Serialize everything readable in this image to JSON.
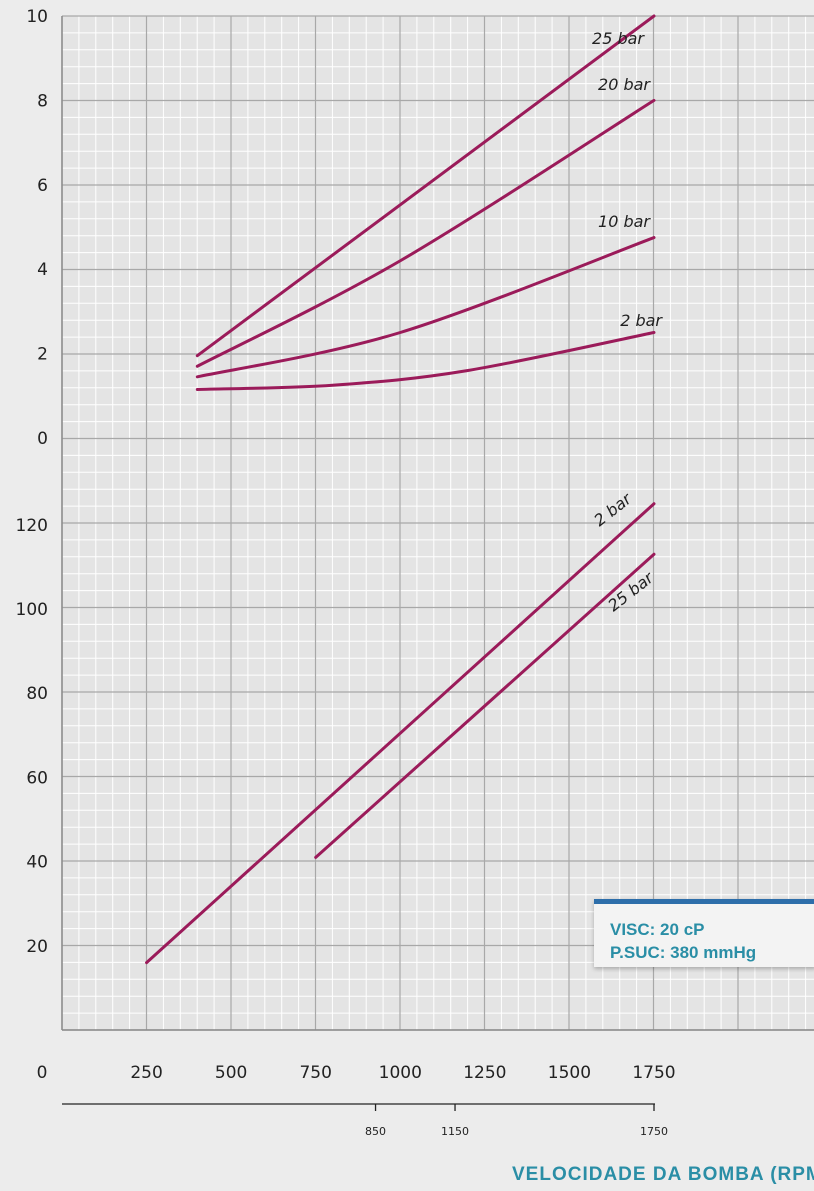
{
  "chart_data": [
    {
      "type": "line",
      "title": "",
      "xlabel": "VELOCIDADE DA BOMBA (RPM)",
      "ylabel": "",
      "xlim": [
        0,
        2000
      ],
      "ylim": [
        0,
        10
      ],
      "grid": true,
      "x_ticks": [
        "250",
        "500",
        "750",
        "1000",
        "1250",
        "1500",
        "1750"
      ],
      "y_ticks": [
        "0",
        "2",
        "4",
        "6",
        "8",
        "10"
      ],
      "series": [
        {
          "name": "25 bar",
          "x": [
            400,
            1750
          ],
          "y": [
            1.95,
            10.0
          ]
        },
        {
          "name": "20 bar",
          "x": [
            400,
            1000,
            1750
          ],
          "y": [
            1.7,
            4.2,
            8.0
          ]
        },
        {
          "name": "10 bar",
          "x": [
            400,
            1000,
            1750
          ],
          "y": [
            1.45,
            2.5,
            4.75
          ]
        },
        {
          "name": "2 bar",
          "x": [
            400,
            800,
            1200,
            1750
          ],
          "y": [
            1.15,
            1.25,
            1.6,
            2.5
          ]
        }
      ]
    },
    {
      "type": "line",
      "title": "",
      "xlabel": "VELOCIDADE DA BOMBA (RPM)",
      "ylabel": "",
      "xlim": [
        0,
        2000
      ],
      "ylim": [
        0,
        140
      ],
      "grid": true,
      "y_ticks": [
        "20",
        "40",
        "60",
        "80",
        "100",
        "120"
      ],
      "series": [
        {
          "name": "2 bar",
          "x": [
            250,
            1750
          ],
          "y": [
            16,
            125
          ]
        },
        {
          "name": "25 bar",
          "x": [
            750,
            1750
          ],
          "y": [
            41,
            113
          ]
        }
      ]
    }
  ],
  "x_axis_zero": "0",
  "secondary_axis": {
    "ticks": [
      "850",
      "1150",
      "1750"
    ],
    "values": [
      850,
      1150,
      1750
    ]
  },
  "info_box": {
    "line1": "VISC: 20 cP",
    "line2": "P.SUC: 380 mmHg"
  },
  "colors": {
    "curve": "#9b1b5a",
    "grid_major": "#a8a8a8",
    "grid_minor": "#ffffff",
    "accent": "#2a8ea6",
    "box_border": "#2d6eaa"
  }
}
